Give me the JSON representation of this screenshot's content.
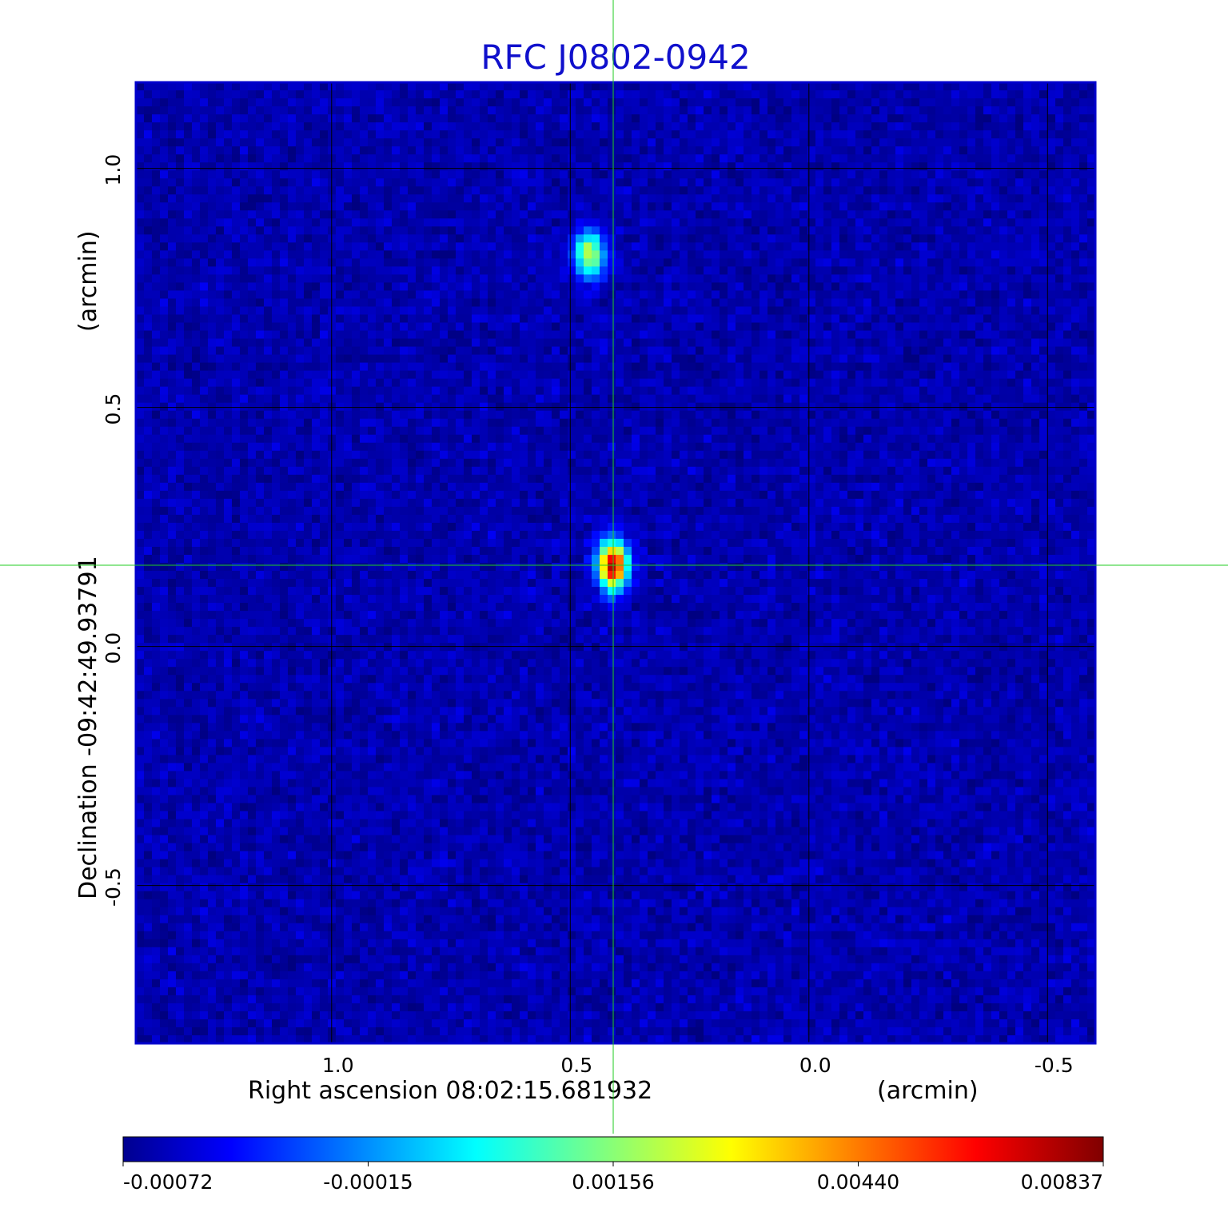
{
  "title": "RFC J0802-0942",
  "x_axis": {
    "label": "Right ascension  08:02:15.681932",
    "unit_label": "(arcmin)",
    "ticks": [
      "1.0",
      "0.5",
      "0.0",
      "-0.5"
    ],
    "tick_values": [
      1.0,
      0.5,
      0.0,
      -0.5
    ],
    "range": [
      1.41,
      -0.6
    ]
  },
  "y_axis": {
    "label": "Declination  -09:42:49.93791",
    "unit_label": "(arcmin)",
    "ticks": [
      "1.0",
      "0.5",
      "0.0",
      "-0.5"
    ],
    "tick_values": [
      1.0,
      0.5,
      0.0,
      -0.5
    ],
    "range": [
      -0.83,
      1.18
    ]
  },
  "colorbar": {
    "colormap": "jet",
    "tick_labels": [
      "-0.00072",
      "-0.00015",
      "0.00156",
      "0.00440",
      "0.00837"
    ],
    "tick_values": [
      -0.00072,
      -0.00015,
      0.00156,
      0.0044,
      0.00837
    ]
  },
  "image": {
    "grid_size": 120,
    "background_level": -0.0003,
    "noise_amplitude": 0.00042,
    "sources": [
      {
        "name": "main-source",
        "x_arcmin": 0.41,
        "y_arcmin": 0.17,
        "peak": 0.00837
      },
      {
        "name": "secondary-source",
        "x_arcmin": 0.46,
        "y_arcmin": 0.82,
        "peak": 0.0048
      }
    ]
  },
  "crosshair": {
    "x_arcmin": 0.41,
    "y_arcmin": 0.17,
    "color": "#22cc22"
  },
  "colors": {
    "frame": "#0000cc",
    "title": "#1010cc",
    "grid": "#000000"
  }
}
